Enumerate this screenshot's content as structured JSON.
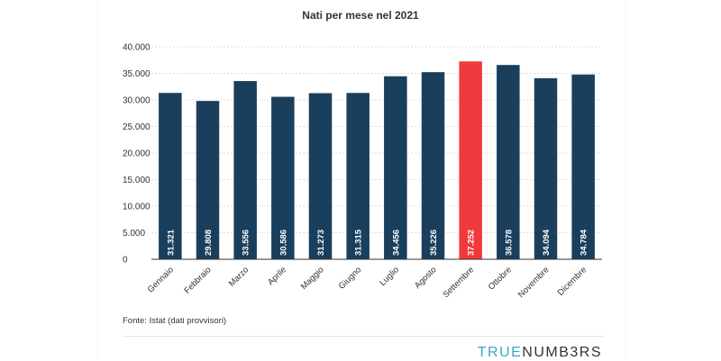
{
  "chart_data": {
    "type": "bar",
    "title": "Nati per mese nel 2021",
    "categories": [
      "Gennaio",
      "Febbraio",
      "Marzo",
      "Aprile",
      "Maggio",
      "Giugno",
      "Luglio",
      "Agosto",
      "Settembre",
      "Ottobre",
      "Novembre",
      "Dicembre"
    ],
    "values": [
      31321,
      29808,
      33556,
      30586,
      31273,
      31315,
      34456,
      35226,
      37252,
      36578,
      34094,
      34784
    ],
    "value_labels": [
      "31.321",
      "29.808",
      "33.556",
      "30.586",
      "31.273",
      "31.315",
      "34.456",
      "35.226",
      "37.252",
      "36.578",
      "34.094",
      "34.784"
    ],
    "yticks": [
      0,
      5000,
      10000,
      15000,
      20000,
      25000,
      30000,
      35000,
      40000
    ],
    "ytick_labels": [
      "0",
      "5.000",
      "10.000",
      "15.000",
      "20.000",
      "25.000",
      "30.000",
      "35.000",
      "40.000"
    ],
    "ylim": [
      0,
      40000
    ],
    "grid": true,
    "colors": {
      "bar": "#1a3f5c",
      "highlight": "#f0393d",
      "grid": "#dedede",
      "axis": "#333333"
    },
    "highlight_index": 8
  },
  "footer": {
    "source": "Fonte: Istat (dati provvisori)",
    "brand_part1": "TRUE",
    "brand_part2": "NUMB3RS"
  }
}
